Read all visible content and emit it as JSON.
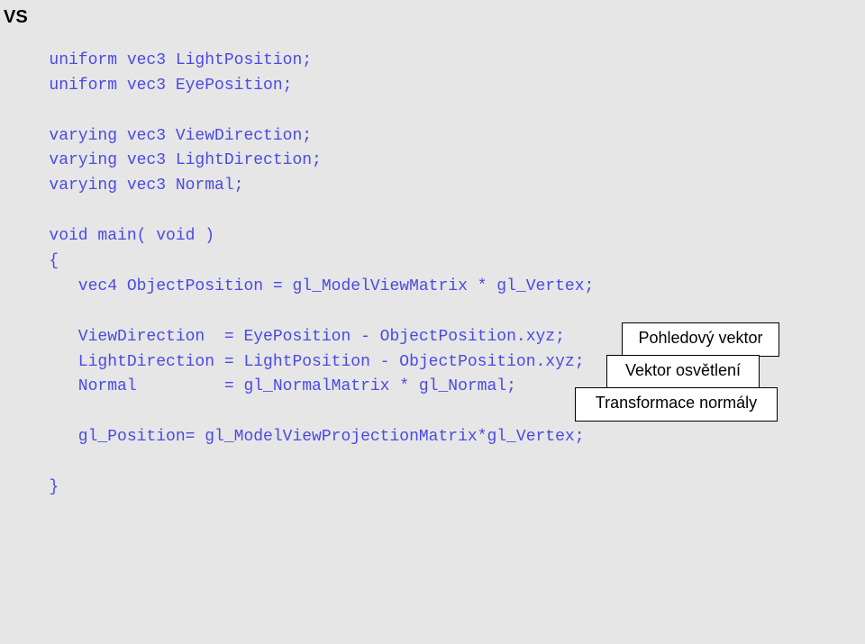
{
  "header": "VS",
  "code": {
    "l1": "uniform vec3 LightPosition;",
    "l2": "uniform vec3 EyePosition;",
    "l3": "",
    "l4": "varying vec3 ViewDirection;",
    "l5": "varying vec3 LightDirection;",
    "l6": "varying vec3 Normal;",
    "l7": "",
    "l8": "void main( void )",
    "l9": "{",
    "l10": "   vec4 ObjectPosition = gl_ModelViewMatrix * gl_Vertex;",
    "l11": "",
    "l12": "   ViewDirection  = EyePosition - ObjectPosition.xyz;",
    "l13": "   LightDirection = LightPosition - ObjectPosition.xyz;",
    "l14": "   Normal         = gl_NormalMatrix * gl_Normal;",
    "l15": "",
    "l16": "   gl_Position= gl_ModelViewProjectionMatrix*gl_Vertex;",
    "l17": "",
    "l18": "}"
  },
  "callouts": {
    "c1": "Pohledový vektor",
    "c2": "Vektor  osvětlení",
    "c3": "Transformace normály"
  },
  "style": {
    "background_color": "#e6e6e6",
    "code_color": "#4a4ae6",
    "header_color": "#000000",
    "callout_bg": "#ffffff",
    "callout_border": "#000000",
    "code_fontsize": 18,
    "callout_fontsize": 18,
    "header_fontsize": 20,
    "font_family_code": "Courier New",
    "font_family_ui": "Arial"
  }
}
